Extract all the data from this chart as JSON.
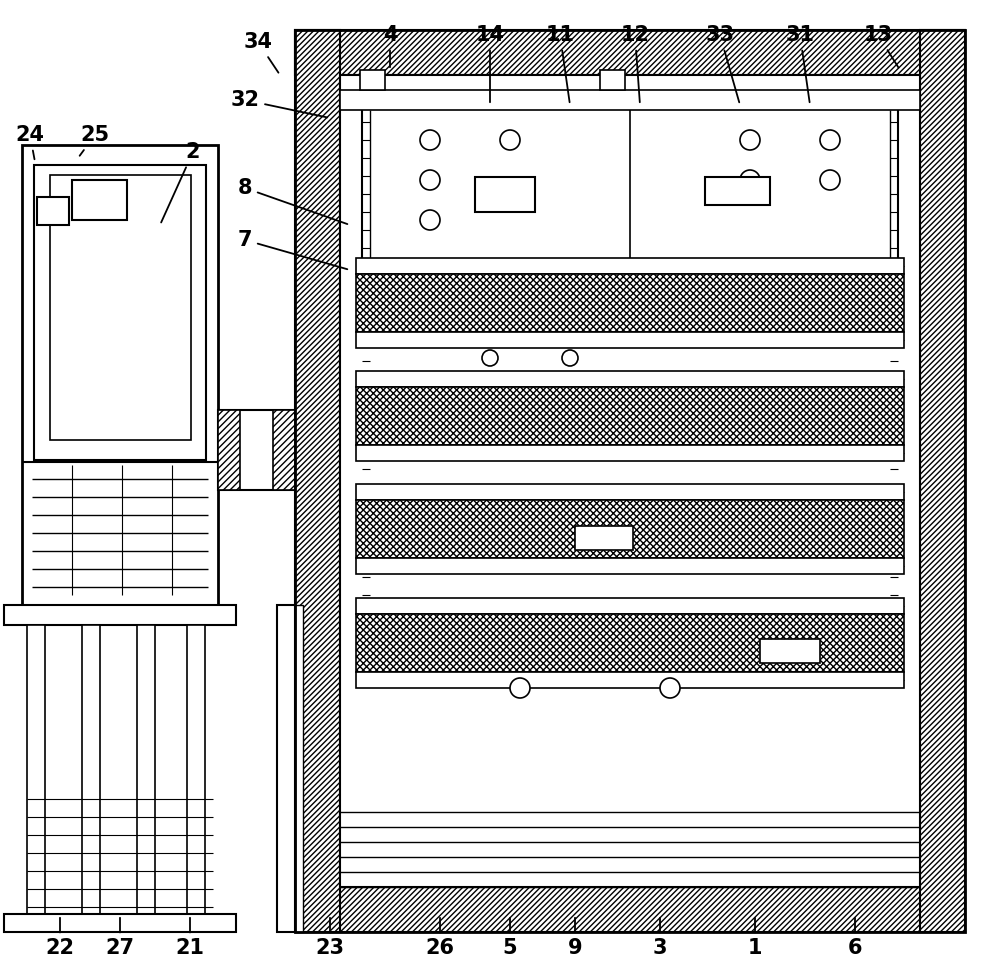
{
  "bg_color": "#ffffff",
  "fig_width": 10.0,
  "fig_height": 9.8,
  "dpi": 100
}
